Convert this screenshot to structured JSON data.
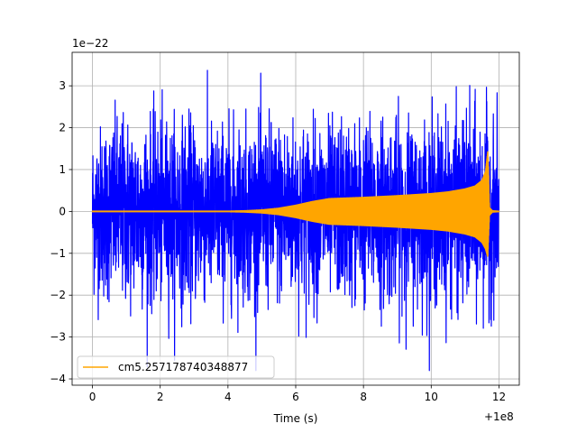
{
  "chart_data": {
    "type": "line",
    "xlabel": "Time (s)",
    "ylabel": "",
    "x_offset_label": "+1e8",
    "y_scale_label": "1e−22",
    "xlim": [
      -0.6,
      12.6
    ],
    "ylim": [
      -4.15,
      3.8
    ],
    "x_ticks": [
      0,
      2,
      4,
      6,
      8,
      10,
      12
    ],
    "x_tick_labels": [
      "0",
      "2",
      "4",
      "6",
      "8",
      "10",
      "12"
    ],
    "y_ticks": [
      -4,
      -3,
      -2,
      -1,
      0,
      1,
      2,
      3
    ],
    "y_tick_labels": [
      "−4",
      "−3",
      "−2",
      "−1",
      "0",
      "1",
      "2",
      "3"
    ],
    "grid": true,
    "legend_position": "lower-left",
    "series": [
      {
        "name": "",
        "color": "#0000ff",
        "kind": "noise",
        "x_range": [
          0,
          12.0
        ],
        "envelope_x": [
          0,
          0.5,
          1,
          2,
          3,
          4,
          5,
          6,
          7,
          8,
          9,
          10,
          11,
          11.5,
          12
        ],
        "envelope_upper": [
          2.0,
          2.2,
          2.3,
          2.2,
          2.2,
          2.1,
          2.2,
          2.2,
          2.1,
          2.2,
          2.2,
          2.2,
          2.3,
          2.4,
          2.0
        ],
        "envelope_lower": [
          -2.0,
          -2.2,
          -2.3,
          -2.2,
          -2.2,
          -2.1,
          -2.2,
          -2.2,
          -2.1,
          -2.2,
          -2.2,
          -2.2,
          -2.3,
          -2.4,
          -2.0
        ],
        "max": 3.45,
        "min": -3.8
      },
      {
        "name": "cm5.257178740348877",
        "color": "#ffa500",
        "kind": "chirp",
        "envelope_x": [
          0,
          4.0,
          4.5,
          5.0,
          5.5,
          6.0,
          6.5,
          7.0,
          8.0,
          9.0,
          10.0,
          10.5,
          11.0,
          11.3,
          11.5,
          11.6,
          11.67,
          11.72,
          11.8,
          12.0
        ],
        "envelope_upper": [
          0.02,
          0.02,
          0.03,
          0.05,
          0.09,
          0.16,
          0.25,
          0.32,
          0.35,
          0.39,
          0.44,
          0.48,
          0.55,
          0.62,
          0.75,
          0.95,
          1.45,
          0.1,
          0.03,
          0.02
        ],
        "envelope_lower": [
          -0.02,
          -0.02,
          -0.03,
          -0.05,
          -0.09,
          -0.16,
          -0.25,
          -0.32,
          -0.35,
          -0.39,
          -0.44,
          -0.48,
          -0.55,
          -0.62,
          -0.75,
          -0.9,
          -1.1,
          -0.1,
          -0.03,
          -0.02
        ]
      }
    ]
  }
}
